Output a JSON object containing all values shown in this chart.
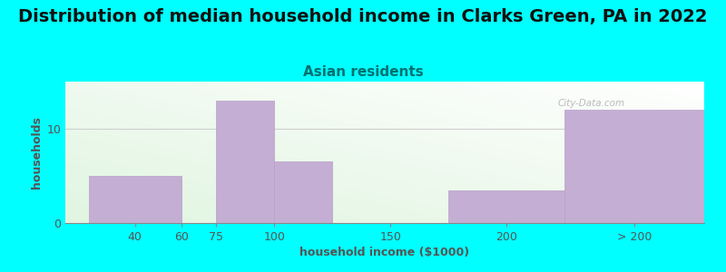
{
  "title": "Distribution of median household income in Clarks Green, PA in 2022",
  "subtitle": "Asian residents",
  "xlabel": "household income ($1000)",
  "ylabel": "households",
  "background_color": "#00FFFF",
  "bar_color": "#C4AED4",
  "bar_edge_color": "#B8A0C8",
  "grid_color": "#d0d0d0",
  "watermark": "City-Data.com",
  "bars": [
    {
      "x_left": 20,
      "x_right": 60,
      "height": 5
    },
    {
      "x_left": 75,
      "x_right": 100,
      "height": 13
    },
    {
      "x_left": 100,
      "x_right": 125,
      "height": 6.5
    },
    {
      "x_left": 175,
      "x_right": 225,
      "height": 3.5
    },
    {
      "x_left": 225,
      "x_right": 285,
      "height": 12
    }
  ],
  "xtick_positions": [
    40,
    60,
    75,
    100,
    150,
    200,
    255
  ],
  "xtick_labels": [
    "40",
    "60",
    "75",
    "100",
    "150",
    "200",
    "> 200"
  ],
  "ylim": [
    0,
    15
  ],
  "yticks": [
    0,
    10
  ],
  "xlim": [
    10,
    285
  ],
  "title_fontsize": 14,
  "subtitle_fontsize": 11,
  "axis_label_fontsize": 9,
  "tick_fontsize": 9,
  "title_color": "#111111",
  "subtitle_color": "#007070",
  "axis_label_color": "#555555",
  "tick_color": "#555555"
}
